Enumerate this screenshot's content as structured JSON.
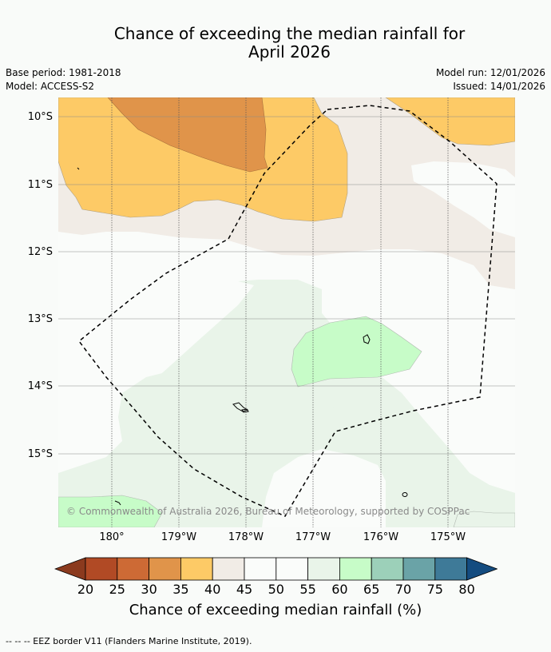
{
  "title": {
    "line1": "Chance of exceeding the median rainfall for",
    "line2": "April 2026"
  },
  "meta": {
    "base_period": "Base period: 1981-2018",
    "model": "Model: ACCESS-S2",
    "model_run": "Model run: 12/01/2026",
    "issued": "Issued: 14/01/2026"
  },
  "map": {
    "lat_labels": [
      "10°S",
      "11°S",
      "12°S",
      "13°S",
      "14°S",
      "15°S"
    ],
    "lon_labels": [
      "180°",
      "179°W",
      "178°W",
      "177°W",
      "176°W",
      "175°W"
    ],
    "copyright": "© Commonwealth of Australia 2026, Bureau of Meteorology, supported by COSPPac"
  },
  "colorbar": {
    "ticks": [
      "20",
      "25",
      "30",
      "35",
      "40",
      "45",
      "50",
      "55",
      "60",
      "65",
      "70",
      "75",
      "80"
    ],
    "colors": [
      "#8b3a1e",
      "#b14a25",
      "#cd6a35",
      "#e0944a",
      "#fdca66",
      "#f1ece6",
      "#fafcfa",
      "#fafcfa",
      "#e9f4e9",
      "#c7fcc8",
      "#9cd0b9",
      "#6aa3a7",
      "#3e7a98",
      "#144c80"
    ],
    "title": "Chance of exceeding median rainfall (%)"
  },
  "footer": "--  --  -- EEZ border V11 (Flanders Marine Institute, 2019)."
}
